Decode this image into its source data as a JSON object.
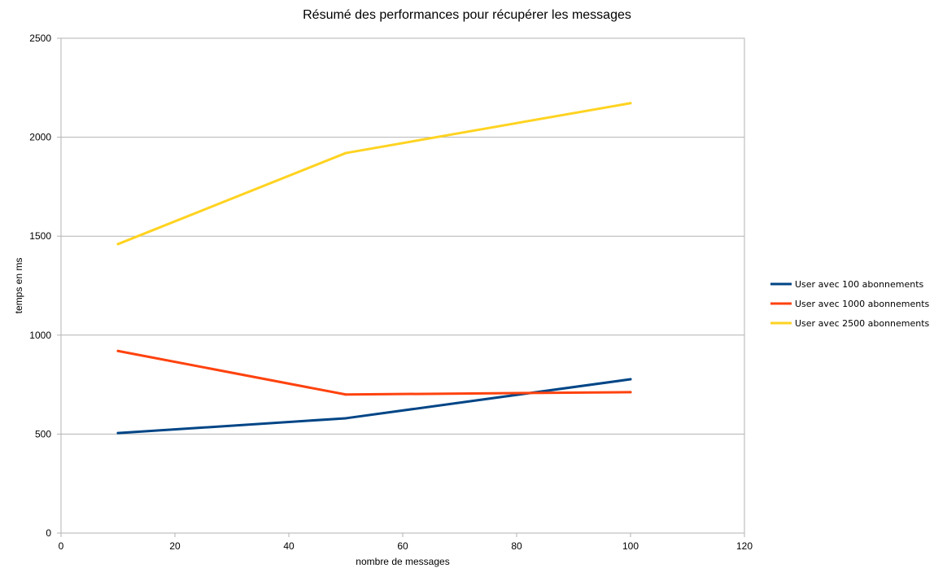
{
  "chart_data": {
    "type": "line",
    "title": "Résumé des performances pour récupérer les messages",
    "xlabel": "nombre de messages",
    "ylabel": "temps en ms",
    "xlim": [
      0,
      120
    ],
    "ylim": [
      0,
      2500
    ],
    "xticks": [
      0,
      20,
      40,
      60,
      80,
      100,
      120
    ],
    "yticks": [
      0,
      500,
      1000,
      1500,
      2000,
      2500
    ],
    "grid": "horizontal",
    "legend_position": "right",
    "x": [
      10,
      50,
      100
    ],
    "series": [
      {
        "name": "User avec 100 abonnements",
        "color": "#004586",
        "values": [
          505,
          580,
          777
        ]
      },
      {
        "name": "User avec 1000 abonnements",
        "color": "#ff420e",
        "values": [
          920,
          700,
          712
        ]
      },
      {
        "name": "User avec 2500 abonnements",
        "color": "#ffd320",
        "values": [
          1460,
          1920,
          2172
        ]
      }
    ]
  }
}
